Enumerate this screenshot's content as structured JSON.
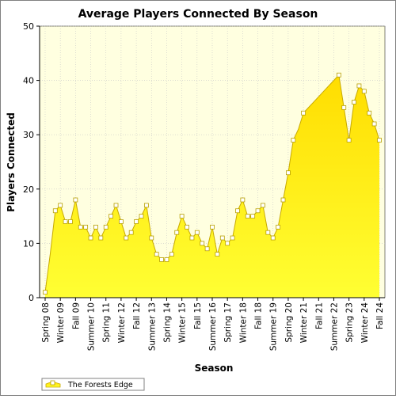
{
  "chart_data": {
    "type": "area",
    "title": "Average Players Connected By Season",
    "xlabel": "Season",
    "ylabel": "Players Connected",
    "ylim": [
      0,
      50
    ],
    "yticks": [
      0,
      10,
      20,
      30,
      40,
      50
    ],
    "grid": true,
    "legend_position": "bottom-left",
    "x_tick_labels": [
      "Spring 08",
      "Winter 09",
      "Fall 09",
      "Summer 10",
      "Spring 11",
      "Winter 12",
      "Fall 12",
      "Summer 13",
      "Spring 14",
      "Winter 15",
      "Fall 15",
      "Summer 16",
      "Spring 17",
      "Winter 18",
      "Fall 18",
      "Summer 19",
      "Spring 20",
      "Winter 21",
      "Fall 21",
      "Summer 22",
      "Spring 23",
      "Winter 24",
      "Fall 24"
    ],
    "tick_every": 3,
    "series": [
      {
        "name": "The Forests Edge",
        "values": [
          1,
          8,
          16,
          17,
          14,
          14,
          18,
          13,
          13,
          11,
          13,
          11,
          13,
          15,
          17,
          14,
          11,
          12,
          14,
          15,
          17,
          11,
          8,
          7,
          7,
          8,
          12,
          15,
          13,
          11,
          12,
          10,
          9,
          13,
          8,
          11,
          10,
          11,
          16,
          18,
          15,
          15,
          16,
          17,
          12,
          11,
          13,
          18,
          23,
          29,
          31,
          34,
          35,
          36,
          37,
          38,
          39,
          40,
          41,
          35,
          29,
          36,
          39,
          38,
          34,
          32,
          29
        ],
        "markers": [
          true,
          false,
          true,
          true,
          true,
          true,
          true,
          true,
          true,
          true,
          true,
          true,
          true,
          true,
          true,
          true,
          true,
          true,
          true,
          true,
          true,
          true,
          true,
          true,
          true,
          true,
          true,
          true,
          true,
          true,
          true,
          true,
          true,
          true,
          true,
          true,
          true,
          true,
          true,
          true,
          true,
          true,
          true,
          true,
          true,
          true,
          true,
          true,
          true,
          true,
          false,
          true,
          false,
          false,
          false,
          false,
          false,
          false,
          true,
          true,
          true,
          true,
          true,
          true,
          true,
          true,
          true
        ]
      }
    ]
  },
  "colors": {
    "background": "#ffffff",
    "plot_background": "#ffffe0",
    "area_fill_top": "#ffdd00",
    "area_fill_bottom": "#ffff33",
    "line": "#c8aa00",
    "marker_fill": "#ffffff",
    "marker_stroke": "#b8a000",
    "grid": "#c8c8c8",
    "axis": "#000000"
  }
}
